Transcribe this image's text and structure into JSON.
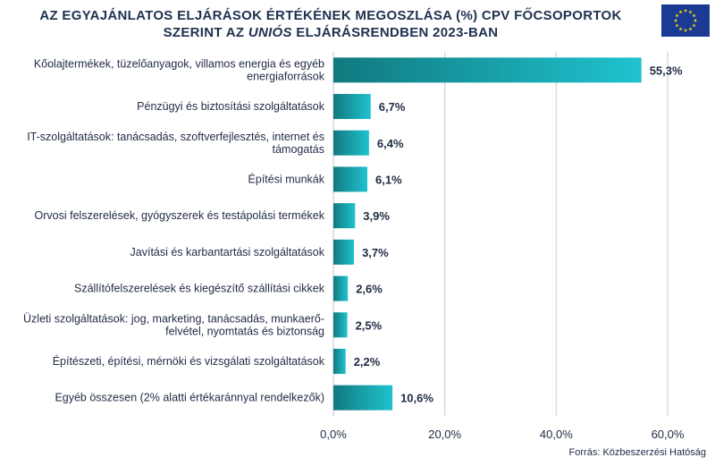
{
  "header": {
    "title_line1": "AZ EGYAJÁNLATOS ELJÁRÁSOK ÉRTÉKÉNEK MEGOSZLÁSA (%) CPV FŐCSOPORTOK",
    "title_line2_pre": "SZERINT AZ ",
    "title_line2_em": "UNIÓS",
    "title_line2_post": "  ELJÁRÁSRENDBEN 2023-BAN"
  },
  "source": "Forrás: Közbeszerzési Hatóság",
  "colors": {
    "bar_dark": "#11797f",
    "bar_light": "#1fc3cf",
    "text": "#1f2a44",
    "grid": "#d0d4da",
    "flag_blue": "#1a3a93",
    "flag_star": "#ffdd00"
  },
  "chart_data": {
    "type": "bar",
    "orientation": "horizontal",
    "categories": [
      [
        "Kőolajtermékek, tüzelőanyagok, villamos energia és egyéb",
        "energiaforrások"
      ],
      [
        "Pénzügyi és biztosítási szolgáltatások"
      ],
      [
        "IT-szolgáltatások: tanácsadás, szoftverfejlesztés, internet és",
        "támogatás"
      ],
      [
        "Építési munkák"
      ],
      [
        "Orvosi felszerelések, gyógyszerek és testápolási termékek"
      ],
      [
        "Javítási és karbantartási szolgáltatások"
      ],
      [
        "Szállítófelszerelések és kiegészítő szállítási cikkek"
      ],
      [
        "Üzleti szolgáltatások: jog, marketing, tanácsadás, munkaerő-",
        "felvétel, nyomtatás és biztonság"
      ],
      [
        "Építészeti, építési, mérnöki és vizsgálati szolgáltatások"
      ],
      [
        "Egyéb összesen (2% alatti értékaránnyal rendelkezők)"
      ]
    ],
    "values": [
      55.3,
      6.7,
      6.4,
      6.1,
      3.9,
      3.7,
      2.6,
      2.5,
      2.2,
      10.6
    ],
    "value_labels": [
      "55,3%",
      "6,7%",
      "6,4%",
      "6,1%",
      "3,9%",
      "3,7%",
      "2,6%",
      "2,5%",
      "2,2%",
      "10,6%"
    ],
    "xlim": [
      0,
      60
    ],
    "xticks": [
      0,
      20,
      40,
      60
    ],
    "xtick_labels": [
      "0,0%",
      "20,0%",
      "40,0%",
      "60,0%"
    ],
    "grid": true,
    "legend": "none"
  }
}
